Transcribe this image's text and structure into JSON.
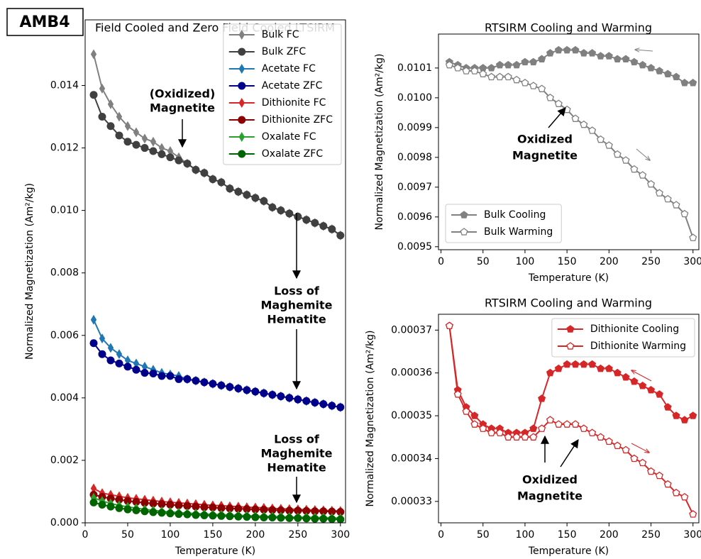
{
  "label": "AMB4",
  "chart_data": [
    {
      "type": "line",
      "title": "Field Cooled and Zero Field Cooled LTSIRM",
      "xlabel": "Temperature (K)",
      "ylabel": "Normalized Magnetization (Am²/kg)",
      "xlim": [
        0,
        306
      ],
      "xticks": [
        0,
        50,
        100,
        150,
        200,
        250,
        300
      ],
      "ylim": [
        0,
        0.0161
      ],
      "yticks": [
        {
          "value": 0,
          "label": "0.000"
        },
        0.002,
        0.004,
        0.006,
        0.008,
        {
          "value": 0.01,
          "label": "0.010"
        },
        0.012,
        0.014
      ],
      "legend": "upper right",
      "x": [
        10,
        20,
        30,
        40,
        50,
        60,
        70,
        80,
        90,
        100,
        110,
        120,
        130,
        140,
        150,
        160,
        170,
        180,
        190,
        200,
        210,
        220,
        230,
        240,
        250,
        260,
        270,
        280,
        290,
        300
      ],
      "series": [
        {
          "name": "Bulk FC",
          "color": "#808080",
          "marker": "diamond",
          "values": [
            0.015,
            0.0139,
            0.0134,
            0.013,
            0.0127,
            0.0125,
            0.0123,
            0.0122,
            0.012,
            0.0119,
            0.0117,
            0.0115,
            0.0113,
            0.0112,
            0.011,
            0.0109,
            0.0107,
            0.0106,
            0.0105,
            0.0104,
            0.0103,
            0.0101,
            0.01,
            0.0099,
            0.0098,
            0.0097,
            0.0096,
            0.0095,
            0.0094,
            0.0092
          ]
        },
        {
          "name": "Bulk ZFC",
          "color": "#404040",
          "marker": "circle",
          "values": [
            0.0137,
            0.013,
            0.0127,
            0.0124,
            0.0122,
            0.0121,
            0.012,
            0.0119,
            0.0118,
            0.0117,
            0.0116,
            0.0115,
            0.0113,
            0.0112,
            0.011,
            0.0109,
            0.0107,
            0.0106,
            0.0105,
            0.0104,
            0.0103,
            0.0101,
            0.01,
            0.0099,
            0.0098,
            0.0097,
            0.0096,
            0.0095,
            0.0094,
            0.0092
          ]
        },
        {
          "name": "Acetate FC",
          "color": "#1f77b4",
          "marker": "diamond",
          "values": [
            0.0065,
            0.0059,
            0.0056,
            0.0054,
            0.0052,
            0.0051,
            0.005,
            0.0049,
            0.0048,
            0.00475,
            0.0047,
            0.0046,
            0.00455,
            0.0045,
            0.00445,
            0.0044,
            0.00435,
            0.0043,
            0.00425,
            0.0042,
            0.00415,
            0.0041,
            0.00405,
            0.004,
            0.00395,
            0.0039,
            0.00385,
            0.0038,
            0.00375,
            0.0037
          ]
        },
        {
          "name": "Acetate ZFC",
          "color": "#00008b",
          "marker": "circle",
          "values": [
            0.00575,
            0.0054,
            0.0052,
            0.0051,
            0.005,
            0.0049,
            0.0048,
            0.00478,
            0.0047,
            0.0047,
            0.0046,
            0.0046,
            0.00455,
            0.0045,
            0.00445,
            0.0044,
            0.00435,
            0.0043,
            0.00425,
            0.0042,
            0.00415,
            0.0041,
            0.00405,
            0.004,
            0.00395,
            0.0039,
            0.00385,
            0.0038,
            0.00375,
            0.0037
          ]
        },
        {
          "name": "Dithionite FC",
          "color": "#d62728",
          "marker": "diamond",
          "values": [
            0.0011,
            0.00095,
            0.0009,
            0.00085,
            0.0008,
            0.00077,
            0.00074,
            0.00071,
            0.00068,
            0.00066,
            0.00064,
            0.00062,
            0.0006,
            0.00058,
            0.00056,
            0.00055,
            0.00053,
            0.00052,
            0.0005,
            0.00049,
            0.00048,
            0.00046,
            0.00045,
            0.00044,
            0.00043,
            0.00042,
            0.00041,
            0.0004,
            0.00039,
            0.00038
          ]
        },
        {
          "name": "Dithionite ZFC",
          "color": "#8b0000",
          "marker": "circle",
          "values": [
            0.0009,
            0.00083,
            0.00078,
            0.00074,
            0.0007,
            0.00067,
            0.00064,
            0.00062,
            0.0006,
            0.00058,
            0.00056,
            0.00054,
            0.00052,
            0.0005,
            0.00049,
            0.00047,
            0.00046,
            0.00045,
            0.00044,
            0.00043,
            0.00042,
            0.00041,
            0.0004,
            0.00039,
            0.00039,
            0.00038,
            0.00037,
            0.00037,
            0.00036,
            0.00035
          ]
        },
        {
          "name": "Oxalate FC",
          "color": "#2ca02c",
          "marker": "diamond",
          "values": [
            0.0008,
            0.0007,
            0.00062,
            0.00056,
            0.00051,
            0.00047,
            0.00043,
            0.0004,
            0.00037,
            0.00035,
            0.00033,
            0.00031,
            0.0003,
            0.00028,
            0.00027,
            0.00026,
            0.00025,
            0.00024,
            0.00023,
            0.00022,
            0.00021,
            0.0002,
            0.0002,
            0.00019,
            0.00018,
            0.00018,
            0.00017,
            0.00017,
            0.00016,
            0.00015
          ]
        },
        {
          "name": "Oxalate ZFC",
          "color": "#006400",
          "marker": "circle",
          "values": [
            0.00065,
            0.00058,
            0.00052,
            0.00047,
            0.00043,
            0.0004,
            0.00037,
            0.00034,
            0.00032,
            0.0003,
            0.00028,
            0.00027,
            0.00025,
            0.00024,
            0.00023,
            0.00022,
            0.00021,
            0.0002,
            0.00019,
            0.00018,
            0.00017,
            0.00017,
            0.00016,
            0.00015,
            0.00015,
            0.00014,
            0.00013,
            0.00013,
            0.00012,
            0.00011
          ]
        }
      ],
      "annotations": [
        [
          "(Oxidized)",
          "Magnetite"
        ],
        [
          "Loss of",
          "Maghemite",
          "Hematite"
        ],
        [
          "Loss of",
          "Maghemite",
          "Hematite"
        ]
      ]
    },
    {
      "type": "line",
      "title": "RTSIRM Cooling and Warming",
      "xlabel": "Temperature (K)",
      "ylabel": "Normalized Magnetization (Am²/kg)",
      "xlim": [
        -3,
        307
      ],
      "xticks": [
        0,
        50,
        100,
        150,
        200,
        250,
        300
      ],
      "ylim": [
        0.00949,
        0.010214
      ],
      "yticks": [
        0.0095,
        0.0096,
        0.0097,
        0.0098,
        0.0099,
        {
          "value": 0.01,
          "label": "0.0100"
        },
        0.0101
      ],
      "legend": "lower left",
      "x": [
        10,
        20,
        30,
        40,
        50,
        60,
        70,
        80,
        90,
        100,
        110,
        120,
        130,
        140,
        150,
        160,
        170,
        180,
        190,
        200,
        210,
        220,
        230,
        240,
        250,
        260,
        270,
        280,
        290,
        300
      ],
      "series": [
        {
          "name": "Bulk Cooling",
          "color": "#808080",
          "marker": "pentagon",
          "values": [
            0.01012,
            0.01011,
            0.0101,
            0.0101,
            0.0101,
            0.0101,
            0.01011,
            0.01011,
            0.01011,
            0.01012,
            0.01012,
            0.01013,
            0.01015,
            0.01016,
            0.01016,
            0.01016,
            0.01015,
            0.01015,
            0.01014,
            0.01014,
            0.01013,
            0.01013,
            0.01012,
            0.01011,
            0.0101,
            0.01009,
            0.01008,
            0.01007,
            0.01005,
            0.01005
          ]
        },
        {
          "name": "Bulk Warming",
          "color": "#808080",
          "marker": "pentagon-open",
          "values": [
            0.01011,
            0.0101,
            0.01009,
            0.01009,
            0.01008,
            0.01007,
            0.01007,
            0.01007,
            0.01006,
            0.01005,
            0.01004,
            0.01003,
            0.01,
            0.00998,
            0.00996,
            0.00993,
            0.00991,
            0.00989,
            0.00986,
            0.00984,
            0.00981,
            0.00979,
            0.00976,
            0.00974,
            0.00971,
            0.00968,
            0.00966,
            0.00964,
            0.00961,
            0.00953
          ]
        }
      ],
      "annotations": [
        [
          "Oxidized",
          "Magnetite"
        ]
      ]
    },
    {
      "type": "line",
      "title": "RTSIRM Cooling and Warming",
      "xlabel": "Temperature (K)",
      "ylabel": "Normalized Magnetization (Am²/kg)",
      "xlim": [
        -3,
        307
      ],
      "xticks": [
        0,
        50,
        100,
        150,
        200,
        250,
        300
      ],
      "ylim": [
        0.000325,
        0.0003737
      ],
      "yticks": [
        0.00033,
        0.00034,
        0.00035,
        0.00036,
        0.00037
      ],
      "legend": "upper right",
      "x": [
        10,
        20,
        30,
        40,
        50,
        60,
        70,
        80,
        90,
        100,
        110,
        120,
        130,
        140,
        150,
        160,
        170,
        180,
        190,
        200,
        210,
        220,
        230,
        240,
        250,
        260,
        270,
        280,
        290,
        300
      ],
      "series": [
        {
          "name": "Dithionite Cooling",
          "color": "#d62728",
          "marker": "pentagon",
          "values": [
            0.000371,
            0.000356,
            0.000352,
            0.00035,
            0.000348,
            0.000347,
            0.000347,
            0.000346,
            0.000346,
            0.000346,
            0.000347,
            0.000354,
            0.00036,
            0.000361,
            0.000362,
            0.000362,
            0.000362,
            0.000362,
            0.000361,
            0.000361,
            0.00036,
            0.000359,
            0.000358,
            0.000357,
            0.000356,
            0.000355,
            0.000352,
            0.00035,
            0.000349,
            0.00035
          ]
        },
        {
          "name": "Dithionite Warming",
          "color": "#d62728",
          "marker": "pentagon-open",
          "values": [
            0.000371,
            0.000355,
            0.000351,
            0.000348,
            0.000347,
            0.000346,
            0.000346,
            0.000345,
            0.000345,
            0.000345,
            0.000345,
            0.000347,
            0.000349,
            0.000348,
            0.000348,
            0.000348,
            0.000347,
            0.000346,
            0.000345,
            0.000344,
            0.000343,
            0.000342,
            0.00034,
            0.000339,
            0.000337,
            0.000336,
            0.000334,
            0.000332,
            0.000331,
            0.000327
          ]
        }
      ],
      "annotations": [
        [
          "Oxidized",
          "Magnetite"
        ]
      ]
    }
  ]
}
